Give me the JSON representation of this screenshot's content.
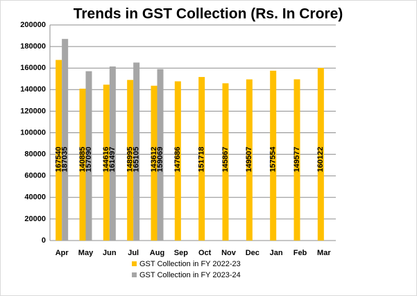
{
  "chart_data": {
    "type": "bar",
    "title": "Trends in GST Collection (Rs. In Crore)",
    "categories": [
      "Apr",
      "May",
      "Jun",
      "Jul",
      "Aug",
      "Sep",
      "Oct",
      "Nov",
      "Dec",
      "Jan",
      "Feb",
      "Mar"
    ],
    "series": [
      {
        "name": "GST Collection in FY 2022-23",
        "color": "#FFC000",
        "values": [
          167540,
          140885,
          144616,
          148995,
          143612,
          147686,
          151718,
          145867,
          149507,
          157554,
          149577,
          160122
        ]
      },
      {
        "name": "GST Collection in FY 2023-24",
        "color": "#A6A6A6",
        "values": [
          187035,
          157090,
          161497,
          165105,
          159069,
          null,
          null,
          null,
          null,
          null,
          null,
          null
        ]
      }
    ],
    "ylim": [
      0,
      200000
    ],
    "yticks": [
      0,
      20000,
      40000,
      60000,
      80000,
      100000,
      120000,
      140000,
      160000,
      180000,
      200000
    ],
    "grid": true,
    "legend": "bottom"
  }
}
